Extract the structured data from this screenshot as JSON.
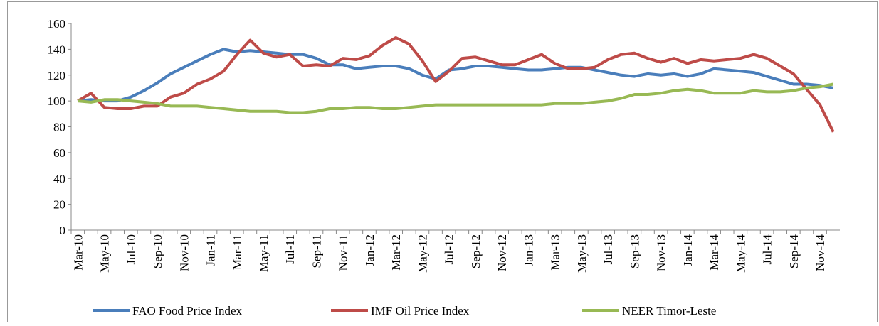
{
  "chart_data": {
    "type": "line",
    "categories": [
      "Mar-10",
      null,
      "May-10",
      null,
      "Jul-10",
      null,
      "Sep-10",
      null,
      "Nov-10",
      null,
      "Jan-11",
      null,
      "Mar-11",
      null,
      "May-11",
      null,
      "Jul-11",
      null,
      "Sep-11",
      null,
      "Nov-11",
      null,
      "Jan-12",
      null,
      "Mar-12",
      null,
      "May-12",
      null,
      "Jul-12",
      null,
      "Sep-12",
      null,
      "Nov-12",
      null,
      "Jan-13",
      null,
      "Mar-13",
      null,
      "May-13",
      null,
      "Jul-13",
      null,
      "Sep-13",
      null,
      "Nov-13",
      null,
      "Jan-14",
      null,
      "Mar-14",
      null,
      "May-14",
      null,
      "Jul-14",
      null,
      "Sep-14",
      null,
      "Nov-14",
      null
    ],
    "series": [
      {
        "name": "FAO Food Price Index",
        "color": "#4a7ebb",
        "values": [
          100,
          101,
          100,
          100,
          103,
          108,
          114,
          121,
          126,
          131,
          136,
          140,
          138,
          139,
          138,
          137,
          136,
          136,
          133,
          128,
          128,
          125,
          126,
          127,
          127,
          125,
          120,
          117,
          124,
          125,
          127,
          127,
          126,
          125,
          124,
          124,
          125,
          126,
          126,
          124,
          122,
          120,
          119,
          121,
          120,
          121,
          119,
          121,
          125,
          124,
          123,
          122,
          119,
          116,
          113,
          113,
          112,
          110
        ]
      },
      {
        "name": "IMF Oil Price Index",
        "color": "#be4b48",
        "values": [
          100,
          106,
          95,
          94,
          94,
          96,
          96,
          103,
          106,
          113,
          117,
          123,
          136,
          147,
          137,
          134,
          136,
          127,
          128,
          127,
          133,
          132,
          135,
          143,
          149,
          144,
          131,
          115,
          123,
          133,
          134,
          131,
          128,
          128,
          132,
          136,
          129,
          125,
          125,
          126,
          132,
          136,
          137,
          133,
          130,
          133,
          129,
          132,
          131,
          132,
          133,
          136,
          133,
          127,
          121,
          109,
          97,
          76
        ]
      },
      {
        "name": "NEER Timor-Leste",
        "color": "#98b954",
        "values": [
          100,
          99,
          101,
          101,
          100,
          99,
          98,
          96,
          96,
          96,
          95,
          94,
          93,
          92,
          92,
          92,
          91,
          91,
          92,
          94,
          94,
          95,
          95,
          94,
          94,
          95,
          96,
          97,
          97,
          97,
          97,
          97,
          97,
          97,
          97,
          97,
          98,
          98,
          98,
          99,
          100,
          102,
          105,
          105,
          106,
          108,
          109,
          108,
          106,
          106,
          106,
          108,
          107,
          107,
          108,
          110,
          111,
          113
        ]
      }
    ],
    "ylim": [
      0,
      160
    ],
    "yticks": [
      0,
      20,
      40,
      60,
      80,
      100,
      120,
      140,
      160
    ]
  }
}
